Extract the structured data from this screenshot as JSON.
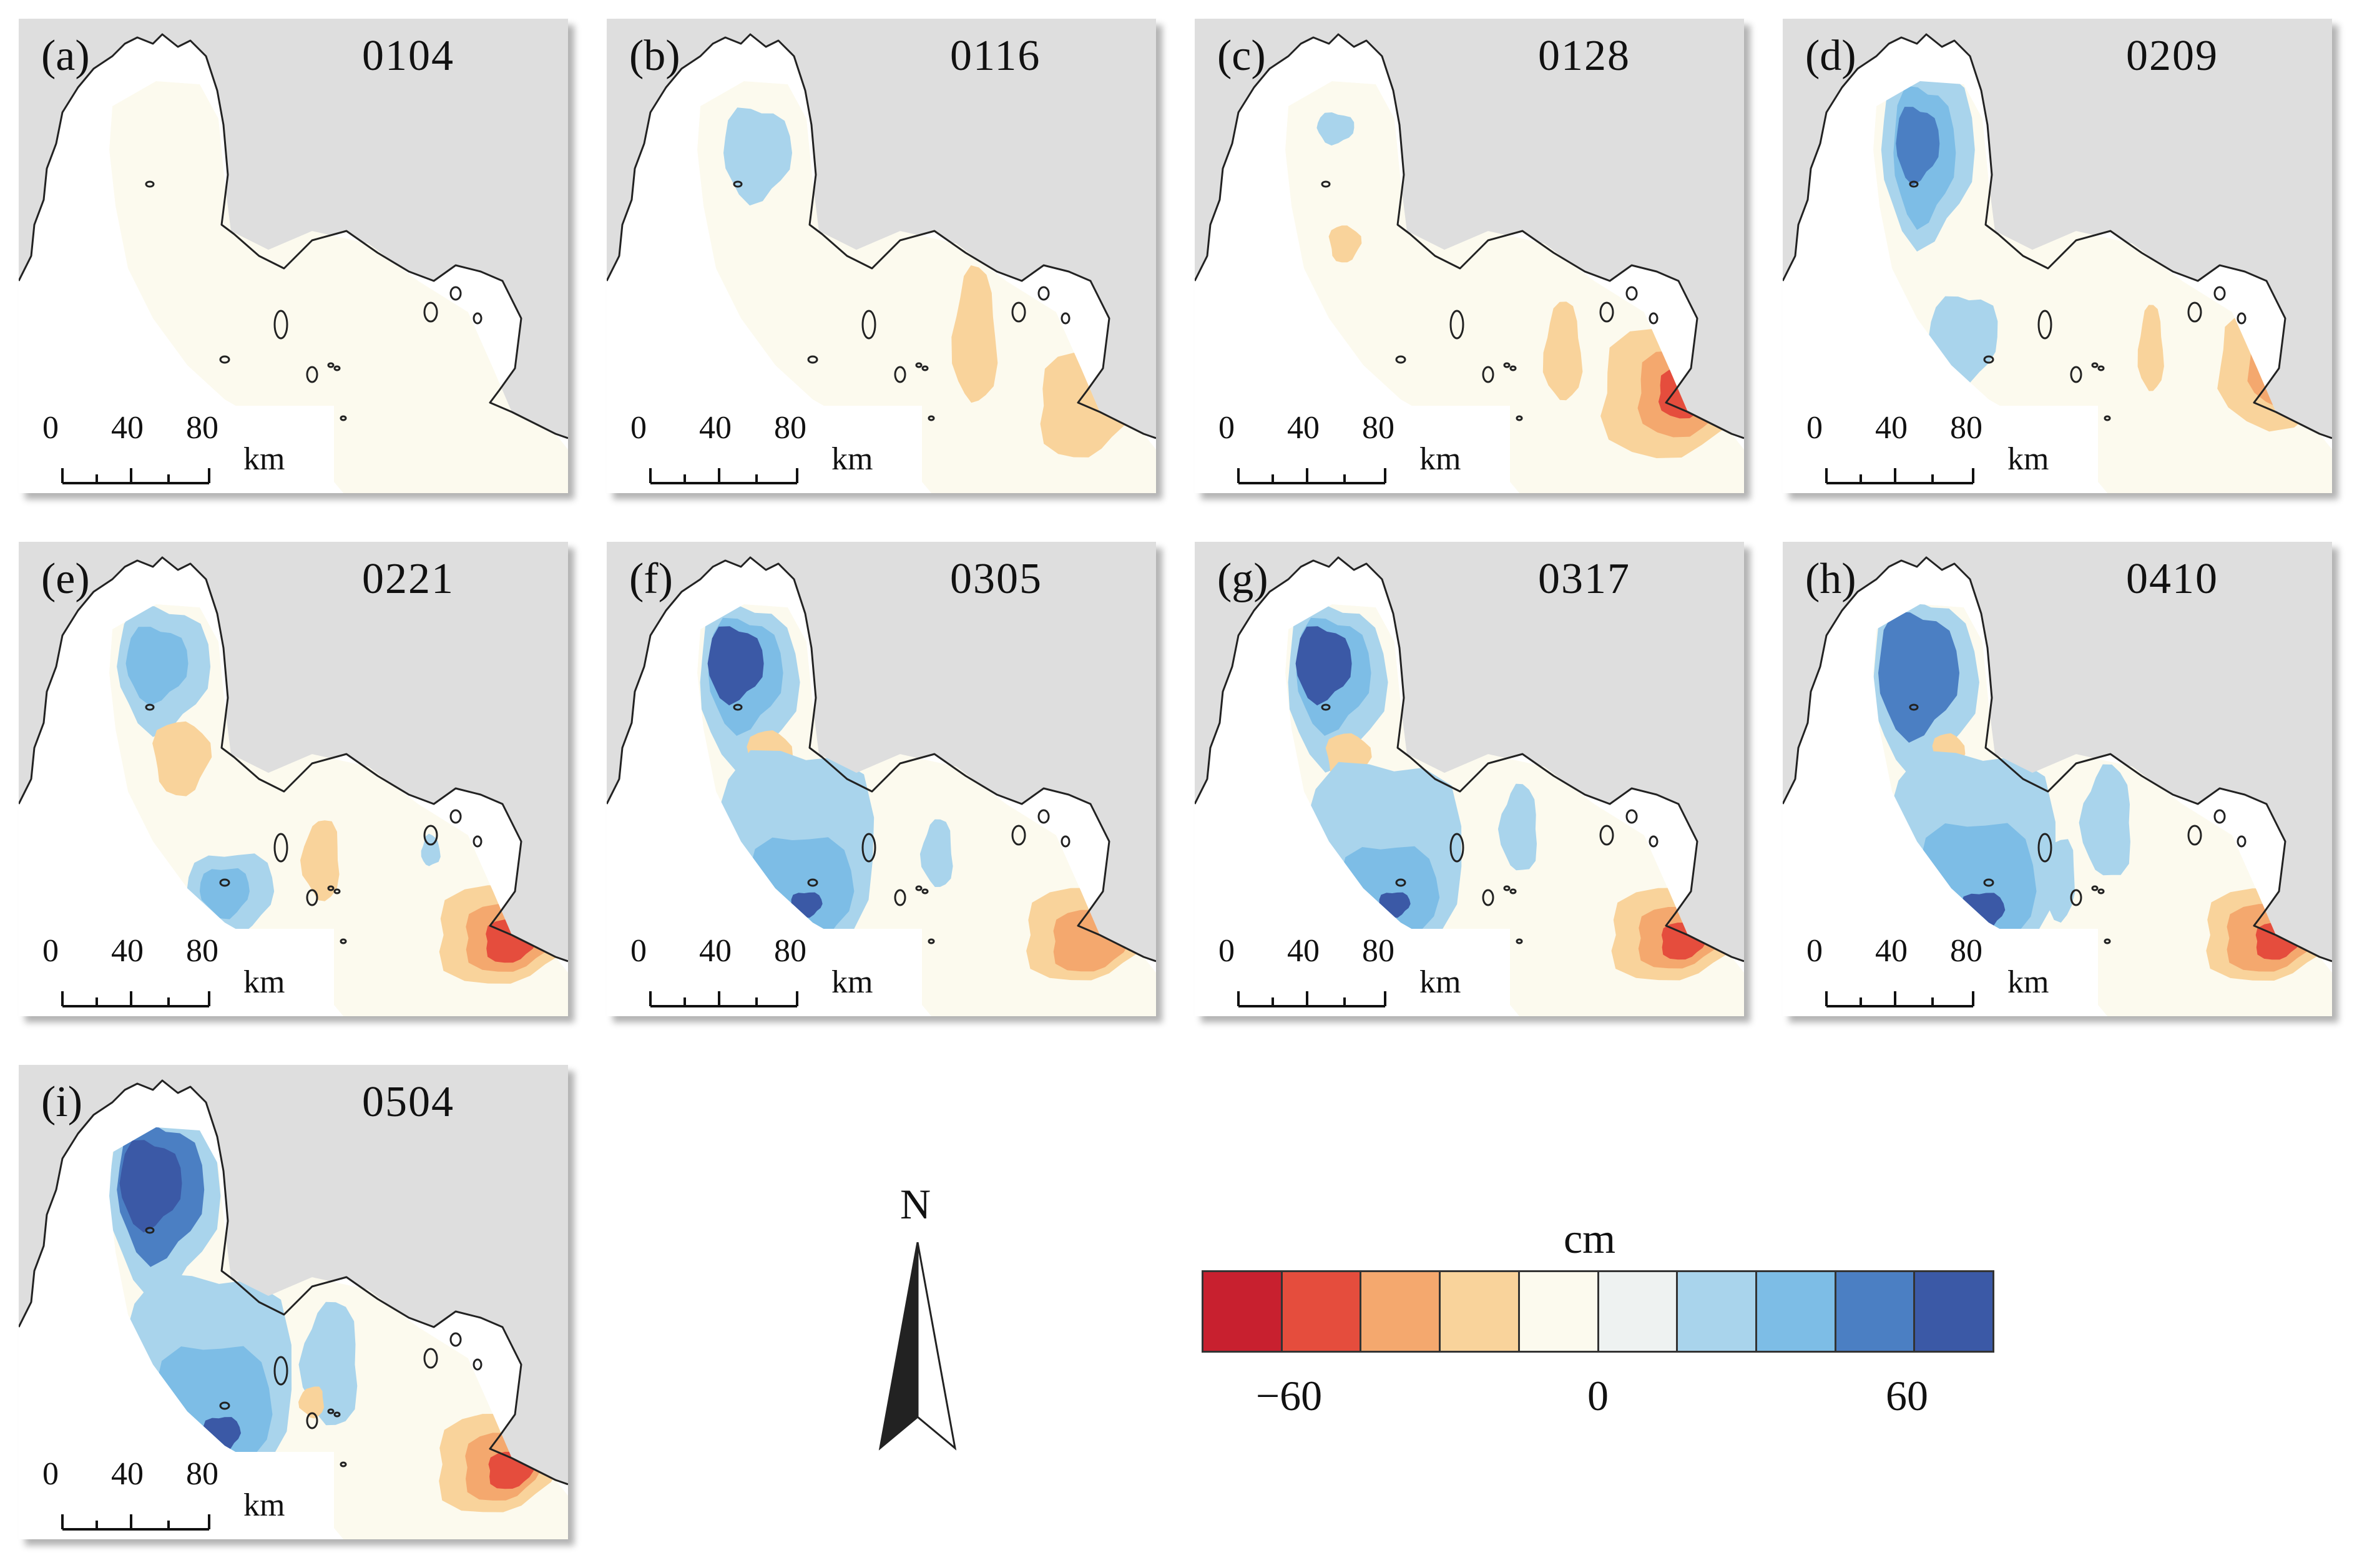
{
  "panels": [
    {
      "label": "(a)",
      "date": "0104",
      "pattern": "a"
    },
    {
      "label": "(b)",
      "date": "0116",
      "pattern": "b"
    },
    {
      "label": "(c)",
      "date": "0128",
      "pattern": "c"
    },
    {
      "label": "(d)",
      "date": "0209",
      "pattern": "d"
    },
    {
      "label": "(e)",
      "date": "0221",
      "pattern": "e"
    },
    {
      "label": "(f)",
      "date": "0305",
      "pattern": "f"
    },
    {
      "label": "(g)",
      "date": "0317",
      "pattern": "g"
    },
    {
      "label": "(h)",
      "date": "0410",
      "pattern": "h"
    },
    {
      "label": "(i)",
      "date": "0504",
      "pattern": "i"
    }
  ],
  "scale_bar": {
    "ticks": [
      "0",
      "40",
      "80"
    ],
    "unit": "km"
  },
  "north_arrow": {
    "label": "N"
  },
  "legend": {
    "unit": "cm",
    "colors": [
      "#c8202f",
      "#e54d3d",
      "#f4a86e",
      "#f9d39b",
      "#fcfaee",
      "#eef2f1",
      "#a9d4ec",
      "#7dbde6",
      "#4b7fc3",
      "#3b59a6"
    ],
    "tick_labels": [
      "−60",
      "0",
      "60"
    ]
  },
  "colors": {
    "background": "#dedede",
    "land": "#ffffff",
    "coastline": "#222222"
  }
}
